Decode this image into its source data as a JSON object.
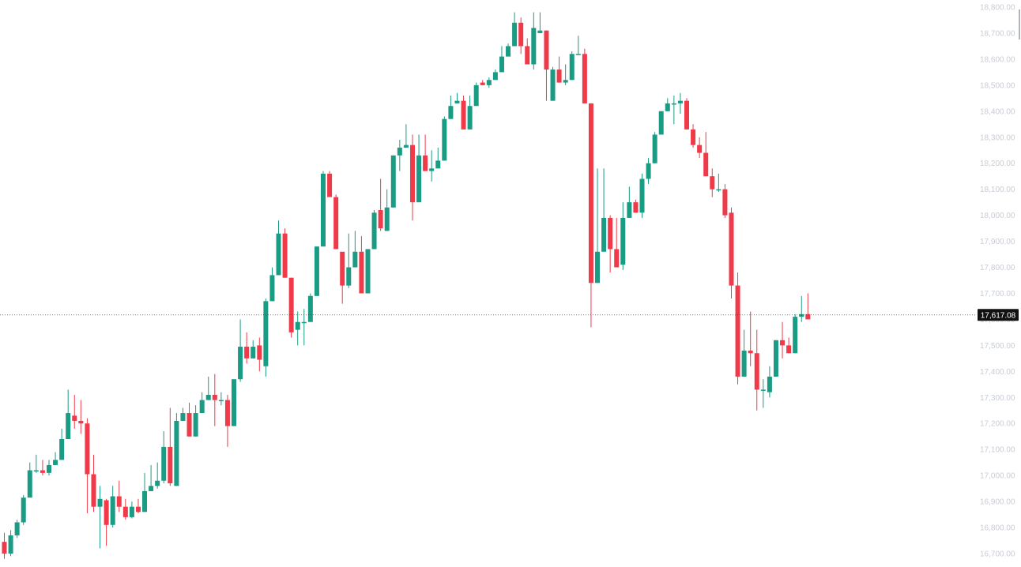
{
  "colors": {
    "up": "#1a9b84",
    "down": "#ef3a4a",
    "axis_text": "#c8ccd4",
    "price_line": "#333333",
    "price_label_bg": "#111111"
  },
  "chart_data": {
    "type": "candlestick",
    "title": "",
    "xlabel": "",
    "ylabel": "",
    "ylim": [
      16700,
      18800
    ],
    "y_ticks": [
      "18,800.00",
      "18,700.00",
      "18,600.00",
      "18,500.00",
      "18,400.00",
      "18,300.00",
      "18,200.00",
      "18,100.00",
      "18,000.00",
      "17,900.00",
      "17,800.00",
      "17,700.00",
      "17,600.00",
      "17,500.00",
      "17,400.00",
      "17,300.00",
      "17,200.00",
      "17,100.00",
      "17,000.00",
      "16,900.00",
      "16,800.00",
      "16,700.00"
    ],
    "last_price": 17617.08,
    "last_price_label": "17,617.08",
    "candles": [
      [
        16745,
        16700,
        16780,
        16680
      ],
      [
        16700,
        16770,
        16790,
        16690
      ],
      [
        16770,
        16820,
        16830,
        16760
      ],
      [
        16820,
        16915,
        16925,
        16810
      ],
      [
        16915,
        17020,
        17050,
        17000
      ],
      [
        17020,
        17020,
        17080,
        17010
      ],
      [
        17020,
        17010,
        17060,
        17000
      ],
      [
        17010,
        17040,
        17060,
        17000
      ],
      [
        17040,
        17060,
        17090,
        17040
      ],
      [
        17060,
        17140,
        17180,
        17060
      ],
      [
        17140,
        17240,
        17330,
        17140
      ],
      [
        17230,
        17210,
        17310,
        17180
      ],
      [
        17210,
        17200,
        17290,
        17160
      ],
      [
        17200,
        17005,
        17220,
        16855
      ],
      [
        17005,
        16880,
        17080,
        16860
      ],
      [
        16880,
        16910,
        16960,
        16720
      ],
      [
        16905,
        16810,
        16910,
        16730
      ],
      [
        16810,
        16920,
        16960,
        16800
      ],
      [
        16920,
        16880,
        16980,
        16860
      ],
      [
        16880,
        16840,
        16910,
        16830
      ],
      [
        16840,
        16880,
        16900,
        16835
      ],
      [
        16880,
        16860,
        16910,
        16855
      ],
      [
        16860,
        16940,
        17010,
        16860
      ],
      [
        16940,
        16960,
        17040,
        16940
      ],
      [
        16960,
        16980,
        17050,
        16950
      ],
      [
        16980,
        17110,
        17170,
        16970
      ],
      [
        17110,
        16970,
        17260,
        16960
      ],
      [
        16960,
        17210,
        17240,
        16960
      ],
      [
        17210,
        17240,
        17260,
        17210
      ],
      [
        17240,
        17150,
        17280,
        17150
      ],
      [
        17150,
        17240,
        17270,
        17150
      ],
      [
        17240,
        17290,
        17320,
        17240
      ],
      [
        17290,
        17310,
        17380,
        17290
      ],
      [
        17310,
        17290,
        17390,
        17190
      ],
      [
        17290,
        17290,
        17320,
        17270
      ],
      [
        17290,
        17190,
        17310,
        17110
      ],
      [
        17190,
        17370,
        17370,
        17190
      ],
      [
        17370,
        17495,
        17600,
        17360
      ],
      [
        17495,
        17450,
        17550,
        17430
      ],
      [
        17450,
        17495,
        17520,
        17450
      ],
      [
        17500,
        17445,
        17530,
        17400
      ],
      [
        17420,
        17670,
        17680,
        17380
      ],
      [
        17670,
        17770,
        17800,
        17670
      ],
      [
        17770,
        17930,
        17980,
        17770
      ],
      [
        17930,
        17760,
        17950,
        17760
      ],
      [
        17760,
        17550,
        17760,
        17530
      ],
      [
        17560,
        17590,
        17630,
        17500
      ],
      [
        17590,
        17590,
        17640,
        17500
      ],
      [
        17590,
        17690,
        17700,
        17590
      ],
      [
        17690,
        17880,
        17880,
        17690
      ],
      [
        17880,
        18160,
        18170,
        17880
      ],
      [
        18160,
        18070,
        18170,
        18070
      ],
      [
        18070,
        17870,
        18080,
        17870
      ],
      [
        17860,
        17730,
        17850,
        17660
      ],
      [
        17730,
        17800,
        17930,
        17720
      ],
      [
        17800,
        17860,
        17940,
        17800
      ],
      [
        17860,
        17700,
        17920,
        17700
      ],
      [
        17700,
        17870,
        17870,
        17700
      ],
      [
        17870,
        18010,
        18020,
        17870
      ],
      [
        18020,
        17950,
        18140,
        17940
      ],
      [
        17940,
        18030,
        18100,
        17940
      ],
      [
        18030,
        18230,
        18230,
        18030
      ],
      [
        18230,
        18260,
        18290,
        18170
      ],
      [
        18260,
        18270,
        18350,
        18260
      ],
      [
        18270,
        18050,
        18310,
        17980
      ],
      [
        18050,
        18230,
        18310,
        18050
      ],
      [
        18230,
        18170,
        18310,
        18170
      ],
      [
        18170,
        18180,
        18250,
        18130
      ],
      [
        18180,
        18210,
        18260,
        18200
      ],
      [
        18210,
        18370,
        18380,
        18210
      ],
      [
        18370,
        18420,
        18460,
        18370
      ],
      [
        18430,
        18440,
        18470,
        18430
      ],
      [
        18440,
        18330,
        18460,
        18330
      ],
      [
        18330,
        18420,
        18460,
        18330
      ],
      [
        18420,
        18500,
        18510,
        18420
      ],
      [
        18510,
        18500,
        18520,
        18500
      ],
      [
        18500,
        18520,
        18530,
        18490
      ],
      [
        18520,
        18550,
        18560,
        18520
      ],
      [
        18550,
        18610,
        18650,
        18550
      ],
      [
        18610,
        18650,
        18660,
        18610
      ],
      [
        18650,
        18740,
        18780,
        18650
      ],
      [
        18740,
        18650,
        18760,
        18620
      ],
      [
        18650,
        18580,
        18680,
        18580
      ],
      [
        18580,
        18720,
        18780,
        18560
      ],
      [
        18700,
        18710,
        18780,
        18710
      ],
      [
        18710,
        18560,
        18710,
        18440
      ],
      [
        18440,
        18560,
        18570,
        18440
      ],
      [
        18560,
        18510,
        18610,
        18510
      ],
      [
        18510,
        18520,
        18580,
        18500
      ],
      [
        18520,
        18620,
        18630,
        18520
      ],
      [
        18620,
        18620,
        18690,
        18620
      ],
      [
        18620,
        18430,
        18640,
        18430
      ],
      [
        18430,
        17740,
        18430,
        17570
      ],
      [
        17740,
        17860,
        18180,
        17740
      ],
      [
        17860,
        17990,
        18180,
        17860
      ],
      [
        17990,
        17870,
        18000,
        17780
      ],
      [
        17870,
        17800,
        17990,
        17800
      ],
      [
        17810,
        17990,
        18050,
        17790
      ],
      [
        17990,
        18050,
        18110,
        17990
      ],
      [
        18050,
        18010,
        18060,
        18010
      ],
      [
        18010,
        18140,
        18160,
        17990
      ],
      [
        18140,
        18200,
        18220,
        18120
      ],
      [
        18200,
        18310,
        18320,
        18200
      ],
      [
        18310,
        18400,
        18400,
        18310
      ],
      [
        18400,
        18430,
        18450,
        18400
      ],
      [
        18430,
        18430,
        18460,
        18350
      ],
      [
        18430,
        18440,
        18470,
        18390
      ],
      [
        18440,
        18330,
        18450,
        18330
      ],
      [
        18330,
        18270,
        18350,
        18260
      ],
      [
        18270,
        18240,
        18300,
        18220
      ],
      [
        18240,
        18150,
        18320,
        18150
      ],
      [
        18150,
        18100,
        18180,
        18070
      ],
      [
        18100,
        18100,
        18160,
        18090
      ],
      [
        18100,
        18000,
        18120,
        17990
      ],
      [
        18010,
        17730,
        18030,
        17680
      ],
      [
        17730,
        17380,
        17780,
        17350
      ],
      [
        17380,
        17480,
        17560,
        17380
      ],
      [
        17480,
        17470,
        17630,
        17420
      ],
      [
        17470,
        17330,
        17560,
        17250
      ],
      [
        17330,
        17330,
        17370,
        17260
      ],
      [
        17320,
        17380,
        17420,
        17300
      ],
      [
        17380,
        17520,
        17520,
        17380
      ],
      [
        17520,
        17500,
        17590,
        17450
      ],
      [
        17500,
        17470,
        17530,
        17470
      ],
      [
        17470,
        17610,
        17620,
        17470
      ],
      [
        17610,
        17620,
        17690,
        17590
      ],
      [
        17620,
        17600,
        17700,
        17600
      ]
    ]
  }
}
